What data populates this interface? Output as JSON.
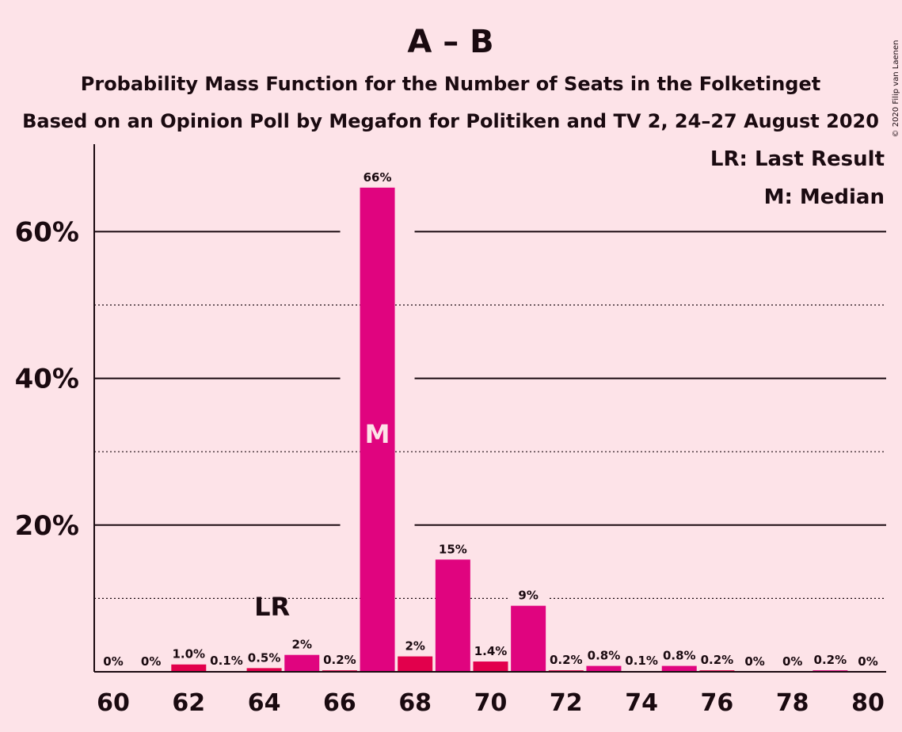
{
  "chart_data": {
    "type": "bar",
    "title": "A – B",
    "subtitle_1": "Probability Mass Function for the Number of Seats in the Folketinget",
    "subtitle_2": "Based on an Opinion Poll by Megafon for Politiken and TV 2, 24–27 August 2020",
    "legend": [
      "LR: Last Result",
      "M: Median"
    ],
    "copyright": "© 2020 Filip van Laenen",
    "x": [
      60,
      61,
      62,
      63,
      64,
      65,
      66,
      67,
      68,
      69,
      70,
      71,
      72,
      73,
      74,
      75,
      76,
      77,
      78,
      79,
      80
    ],
    "values": [
      0,
      0,
      1.0,
      0.1,
      0.5,
      2.3,
      0.2,
      66,
      2.1,
      15.3,
      1.4,
      9,
      0.2,
      0.8,
      0.1,
      0.8,
      0.2,
      0,
      0,
      0.2,
      0
    ],
    "data_labels": [
      "0%",
      "0%",
      "1.0%",
      "0.1%",
      "0.5%",
      "2%",
      "0.2%",
      "66%",
      "2%",
      "15%",
      "1.4%",
      "9%",
      "0.2%",
      "0.8%",
      "0.1%",
      "0.8%",
      "0.2%",
      "0%",
      "0%",
      "0.2%",
      "0%"
    ],
    "x_tick_labels": [
      "60",
      "62",
      "64",
      "66",
      "68",
      "70",
      "72",
      "74",
      "76",
      "78",
      "80"
    ],
    "y_tick_labels": [
      "20%",
      "40%",
      "60%"
    ],
    "y_major_ticks": [
      20,
      40,
      60
    ],
    "y_minor_ticks": [
      10,
      30,
      50
    ],
    "ylim": [
      0,
      72
    ],
    "last_result_seat": 64,
    "last_result_label": "LR",
    "median_seat": 67,
    "median_label": "M",
    "colors": {
      "background": "#FDE3E8",
      "bar_even": "#E2004C",
      "bar_odd": "#E0047F",
      "text": "#1a0a10",
      "median_label": "#FDE3E8"
    }
  }
}
